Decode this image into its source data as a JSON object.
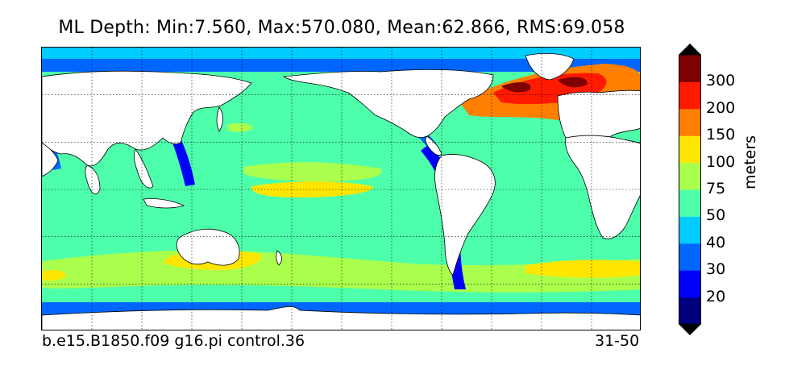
{
  "title": "ML Depth: Min:7.560, Max:570.080, Mean:62.866, RMS:69.058",
  "footer": {
    "case_name": "b.e15.B1850.f09 g16.pi control.36",
    "years": "31-50"
  },
  "colorbar": {
    "units": "meters",
    "levels": [
      {
        "label": "",
        "color": "#00007f"
      },
      {
        "label": "20",
        "color": "#0000ff"
      },
      {
        "label": "30",
        "color": "#0066ff"
      },
      {
        "label": "40",
        "color": "#00ccff"
      },
      {
        "label": "50",
        "color": "#4dffaa"
      },
      {
        "label": "75",
        "color": "#aaff4d"
      },
      {
        "label": "100",
        "color": "#ffe600"
      },
      {
        "label": "150",
        "color": "#ff7f00"
      },
      {
        "label": "200",
        "color": "#ff1a00"
      },
      {
        "label": "300",
        "color": "#7f0000"
      }
    ],
    "extend_low_color": "#000000",
    "extend_high_color": "#000000"
  },
  "map": {
    "projection": "cylindrical (0E–360E)",
    "land_color": "#ffffff",
    "ocean_base_color": "#4dffaa",
    "grid": "dotted"
  }
}
